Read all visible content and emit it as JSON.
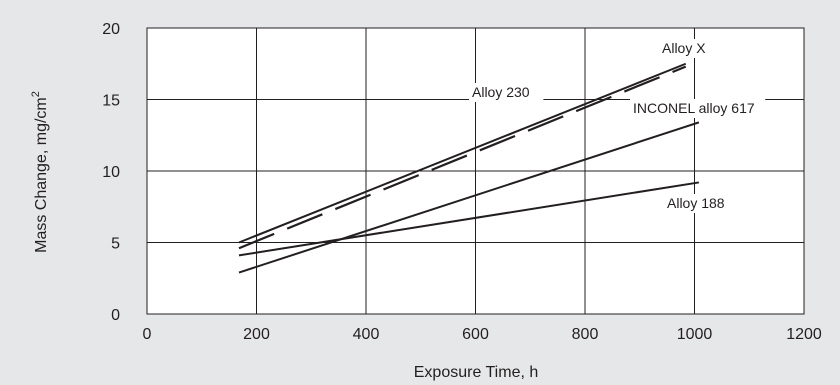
{
  "chart_data": {
    "type": "line",
    "title": "",
    "xlabel": "Exposure Time, h",
    "ylabel": "Mass Change, mg/cm",
    "ylabel_sup": "2",
    "xlim": [
      0,
      1200
    ],
    "ylim": [
      0,
      20
    ],
    "xticks": [
      "0",
      "200",
      "400",
      "600",
      "800",
      "1000",
      "1200"
    ],
    "yticks": [
      "0",
      "5",
      "10",
      "15",
      "20"
    ],
    "grid": true,
    "series": [
      {
        "name": "Alloy X",
        "style": "solid",
        "x": [
          168,
          984
        ],
        "y": [
          5.0,
          17.5
        ]
      },
      {
        "name": "Alloy 230",
        "style": "dashed",
        "x": [
          168,
          984
        ],
        "y": [
          4.6,
          17.3
        ]
      },
      {
        "name": "INCONEL alloy 617",
        "style": "solid",
        "x": [
          168,
          1008
        ],
        "y": [
          2.9,
          13.4
        ]
      },
      {
        "name": "Alloy 188",
        "style": "solid",
        "x": [
          168,
          1008
        ],
        "y": [
          4.1,
          9.2
        ]
      }
    ]
  }
}
